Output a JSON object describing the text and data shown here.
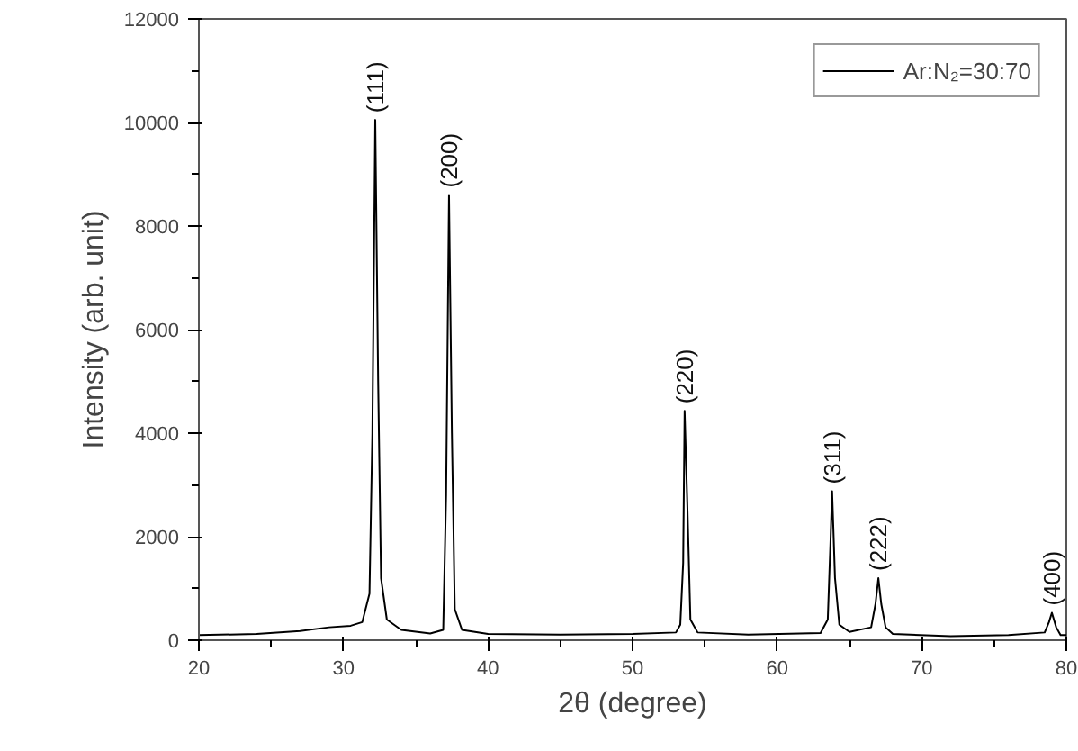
{
  "chart_data": {
    "type": "line",
    "xlabel": "2θ (degree)",
    "ylabel": "Intensity (arb. unit)",
    "xlim": [
      20,
      80
    ],
    "xticks": [
      20,
      30,
      40,
      50,
      60,
      70,
      80
    ],
    "ylim": [
      0,
      12000
    ],
    "yticks": [
      0,
      2000,
      4000,
      6000,
      8000,
      10000,
      12000
    ],
    "grid": false,
    "legend": "top right",
    "marker": "none",
    "line_style": "solid",
    "series": [
      {
        "name": "Ar:N₂=30:70",
        "color": "#000000",
        "x": [
          20,
          24,
          27,
          29,
          30.5,
          31.3,
          31.8,
          32.0,
          32.2,
          32.4,
          32.6,
          33.0,
          34,
          36,
          36.9,
          37.1,
          37.3,
          37.5,
          37.7,
          38.2,
          40,
          45,
          50,
          53,
          53.3,
          53.5,
          53.6,
          53.8,
          54.0,
          54.5,
          58,
          63,
          63.5,
          63.7,
          63.8,
          64.0,
          64.3,
          65,
          66.5,
          66.8,
          67.0,
          67.2,
          67.5,
          68,
          72,
          76,
          78.5,
          78.8,
          79.0,
          79.3,
          79.6,
          80
        ],
        "values": [
          100,
          120,
          180,
          250,
          280,
          350,
          900,
          4000,
          10050,
          5000,
          1200,
          400,
          200,
          130,
          200,
          2800,
          8600,
          4000,
          600,
          200,
          120,
          110,
          120,
          150,
          300,
          1500,
          4430,
          2500,
          400,
          150,
          110,
          140,
          400,
          2000,
          2880,
          1200,
          300,
          160,
          250,
          700,
          1200,
          700,
          250,
          120,
          80,
          100,
          150,
          350,
          530,
          250,
          100,
          100
        ]
      }
    ],
    "annotations": [
      {
        "text": "(111)",
        "x": 32.2,
        "y": 10050
      },
      {
        "text": "(200)",
        "x": 37.3,
        "y": 8600
      },
      {
        "text": "(220)",
        "x": 53.6,
        "y": 4430
      },
      {
        "text": "(311)",
        "x": 63.8,
        "y": 2880
      },
      {
        "text": "(222)",
        "x": 67.0,
        "y": 1200
      },
      {
        "text": "(400)",
        "x": 79.0,
        "y": 530
      }
    ]
  }
}
